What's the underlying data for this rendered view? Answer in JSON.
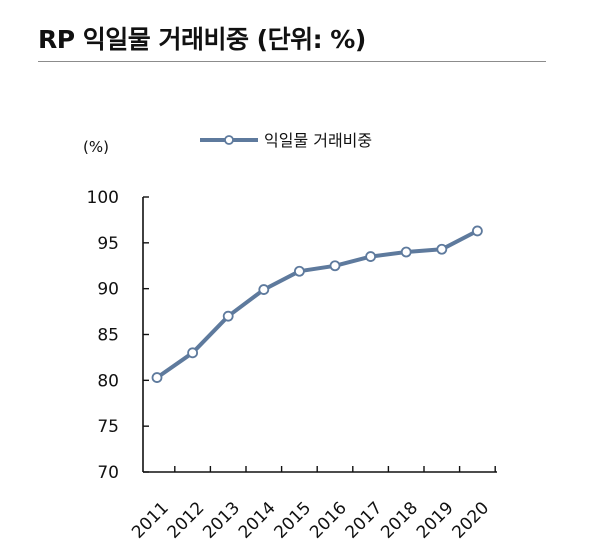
{
  "title": "RP 익일물 거래비중 (단위: %)",
  "chart_data": {
    "type": "line",
    "title": "RP 익일물 거래비중 (단위: %)",
    "unit_label": "(%)",
    "x": [
      "2011",
      "2012",
      "2013",
      "2014",
      "2015",
      "2016",
      "2017",
      "2018",
      "2019",
      "2020"
    ],
    "series": [
      {
        "name": "익일물 거래비중",
        "values": [
          80.3,
          83.0,
          87.0,
          89.9,
          91.9,
          92.5,
          93.5,
          94.0,
          94.3,
          96.3
        ],
        "color": "#5e7a9d"
      }
    ],
    "xlabel": "",
    "ylabel": "",
    "ylim": [
      70,
      100
    ],
    "yticks": [
      "70",
      "75",
      "80",
      "85",
      "90",
      "95",
      "100"
    ],
    "grid": false,
    "legend_position": "top-center",
    "marker": "hollow-circle"
  }
}
